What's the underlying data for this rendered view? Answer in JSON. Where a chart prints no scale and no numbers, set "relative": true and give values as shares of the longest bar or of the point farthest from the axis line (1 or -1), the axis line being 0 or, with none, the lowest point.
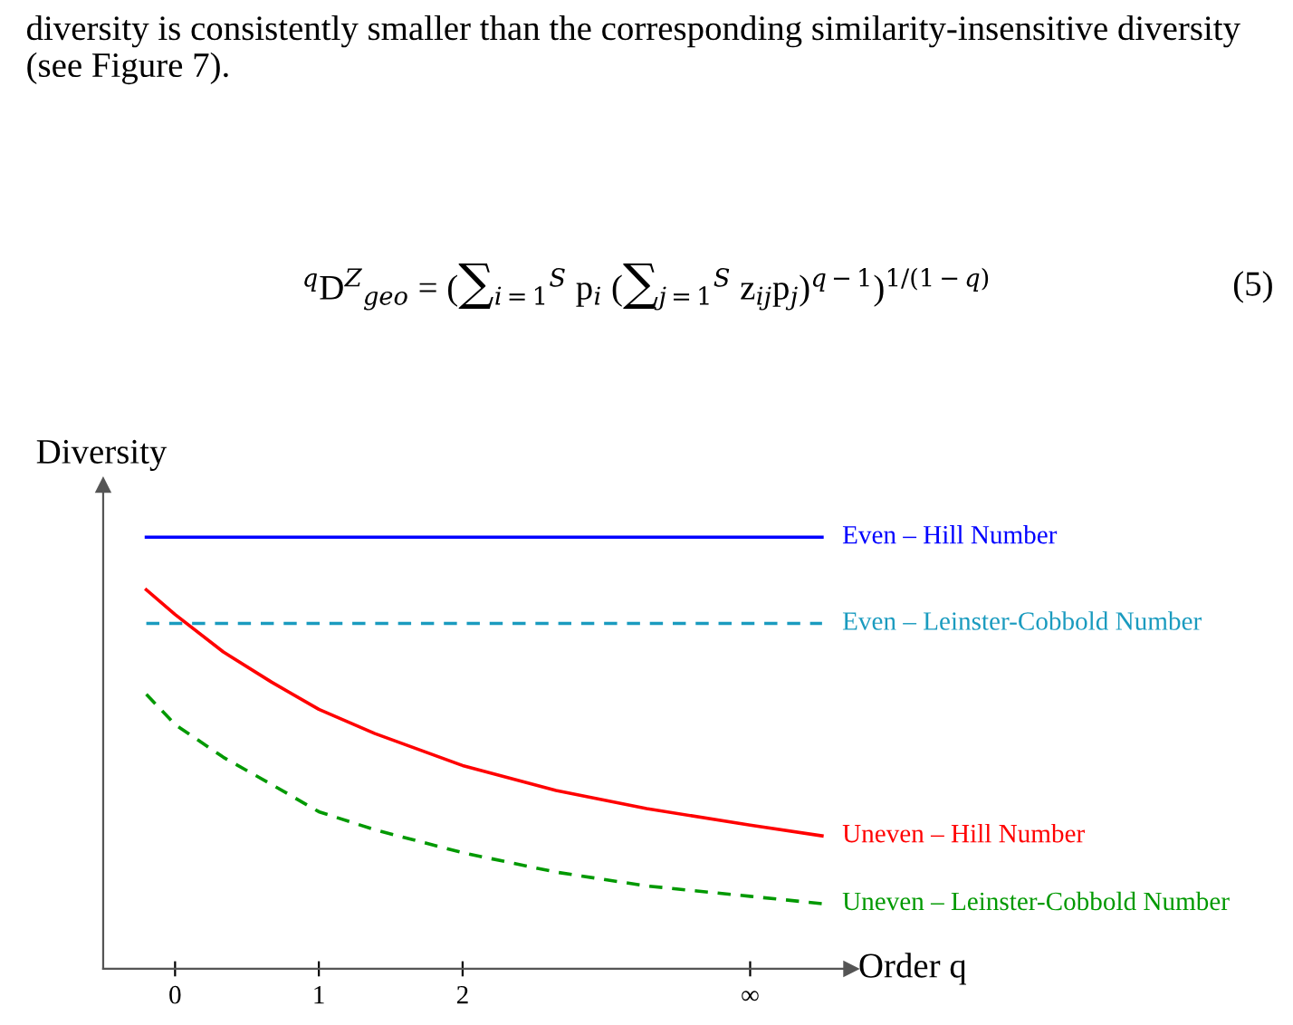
{
  "chart_data": {
    "type": "line",
    "relative": true,
    "ylabel": "Diversity",
    "xlabel": "Order q",
    "xlim": [
      -0.5,
      4.7
    ],
    "xticks": [
      0,
      1,
      2,
      {
        "value": 4,
        "label": "∞"
      }
    ],
    "legend": false,
    "grid": false,
    "marker": "none",
    "annotations": [
      "diversity is consistently smaller than the corresponding similarity-insensitive diversity (see Figure 7).",
      "$^{q}$D$^{Z}$$_{geo}$ = (∑$_{i=1}$$^{S}$ p$_{i}$ (∑$_{j=1}$$^{S}$ z$_{ij}$p$_{j}$)$^{q−1}$)$^{1/(1−q)}$",
      "(5)"
    ],
    "series": [
      {
        "name": "Even – Hill Number",
        "color": "#0000ff",
        "line_style": "solid",
        "x": [
          -0.2,
          4.5
        ],
        "values": [
          1,
          1
        ]
      },
      {
        "name": "Even – Leinster-Cobbold Number",
        "color": "#1a9bbf",
        "line_style": "dashed",
        "x": [
          -0.2,
          4.5
        ],
        "values": [
          0.8,
          0.8
        ]
      },
      {
        "name": "Uneven – Hill Number",
        "color": "#ff0000",
        "line_style": "solid",
        "x": [
          -0.2,
          0,
          0.336,
          0.672,
          1,
          1.39,
          2,
          2.65,
          3.28,
          4,
          4.5
        ],
        "values": [
          0.878,
          0.821,
          0.734,
          0.664,
          0.601,
          0.545,
          0.471,
          0.413,
          0.371,
          0.333,
          0.308
        ]
      },
      {
        "name": "Uneven – Leinster-Cobbold Number",
        "color": "#009900",
        "line_style": "dashed",
        "x": [
          -0.2,
          0,
          0.336,
          0.672,
          1,
          1.39,
          2,
          2.65,
          3.28,
          4,
          4.5
        ],
        "values": [
          0.636,
          0.566,
          0.49,
          0.427,
          0.364,
          0.322,
          0.269,
          0.224,
          0.192,
          0.168,
          0.151
        ]
      }
    ]
  }
}
